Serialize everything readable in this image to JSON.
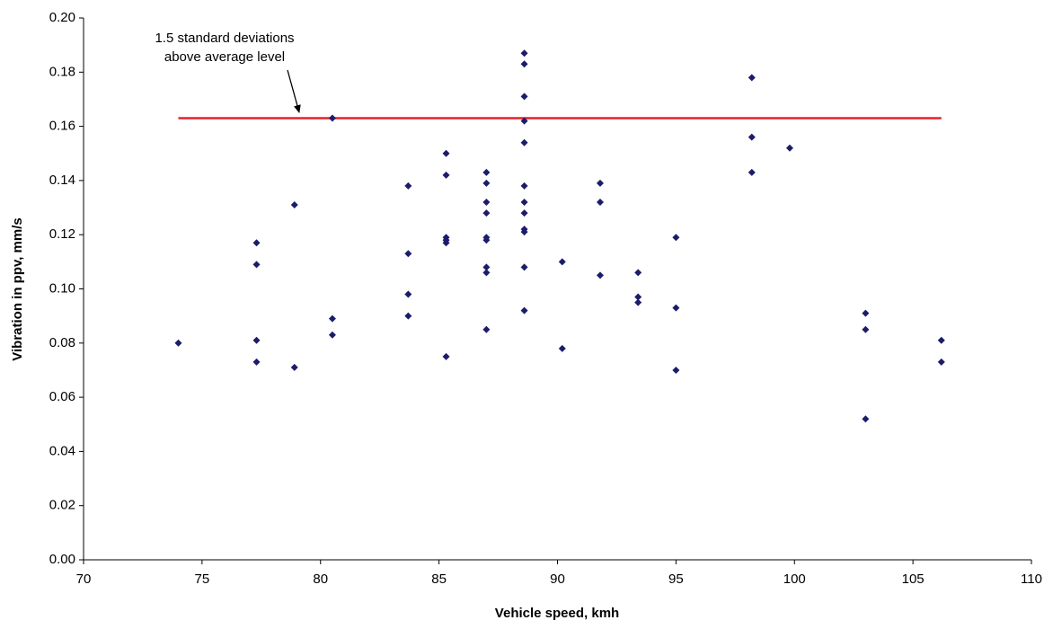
{
  "chart_data": {
    "type": "scatter",
    "x_label": "Vehicle speed, kmh",
    "y_label": "Vibration in ppv, mm/s",
    "xlim": [
      70,
      110
    ],
    "xticks": [
      70,
      75,
      80,
      85,
      90,
      95,
      100,
      105,
      110
    ],
    "ylim": [
      0,
      0.2
    ],
    "yticks": [
      {
        "value": 0,
        "label": "0.00"
      },
      {
        "value": 0.02,
        "label": "0.02"
      },
      {
        "value": 0.04,
        "label": "0.04"
      },
      {
        "value": 0.06,
        "label": "0.06"
      },
      {
        "value": 0.08,
        "label": "0.08"
      },
      {
        "value": 0.1,
        "label": "0.10"
      },
      {
        "value": 0.12,
        "label": "0.12"
      },
      {
        "value": 0.14,
        "label": "0.14"
      },
      {
        "value": 0.16,
        "label": "0.16"
      },
      {
        "value": 0.18,
        "label": "0.18"
      },
      {
        "value": 0.2,
        "label": "0.20"
      }
    ],
    "grid": false,
    "series": [
      {
        "color": "#1c1c6b",
        "x": [
          74,
          77.3,
          77.3,
          77.3,
          77.3,
          78.9,
          78.9,
          80.5,
          80.5,
          80.5,
          83.7,
          83.7,
          83.7,
          83.7,
          85.3,
          85.3,
          85.3,
          85.3,
          85.3,
          85.3,
          87,
          87,
          87,
          87,
          87,
          87,
          87,
          87,
          87,
          88.6,
          88.6,
          88.6,
          88.6,
          88.6,
          88.6,
          88.6,
          88.6,
          88.6,
          88.6,
          88.6,
          88.6,
          90.2,
          90.2,
          91.8,
          91.8,
          91.8,
          93.4,
          93.4,
          93.4,
          95,
          95,
          95,
          98.2,
          98.2,
          98.2,
          99.8,
          103,
          103,
          103,
          106.2,
          106.2
        ],
        "values": [
          0.08,
          0.117,
          0.109,
          0.081,
          0.073,
          0.131,
          0.071,
          0.163,
          0.089,
          0.083,
          0.138,
          0.113,
          0.098,
          0.09,
          0.15,
          0.142,
          0.119,
          0.118,
          0.117,
          0.075,
          0.143,
          0.139,
          0.132,
          0.128,
          0.119,
          0.118,
          0.108,
          0.106,
          0.085,
          0.187,
          0.183,
          0.171,
          0.162,
          0.154,
          0.138,
          0.132,
          0.128,
          0.122,
          0.121,
          0.108,
          0.092,
          0.11,
          0.078,
          0.139,
          0.132,
          0.105,
          0.106,
          0.097,
          0.095,
          0.119,
          0.093,
          0.07,
          0.178,
          0.156,
          0.143,
          0.152,
          0.091,
          0.085,
          0.052,
          0.081,
          0.073
        ]
      }
    ],
    "reference_line": {
      "x": [
        74,
        106.2
      ],
      "values": [
        0.163,
        0.163
      ],
      "color": "#e8202a"
    },
    "annotation": {
      "lines": [
        "1.5 standard deviations",
        "above average level"
      ]
    }
  }
}
